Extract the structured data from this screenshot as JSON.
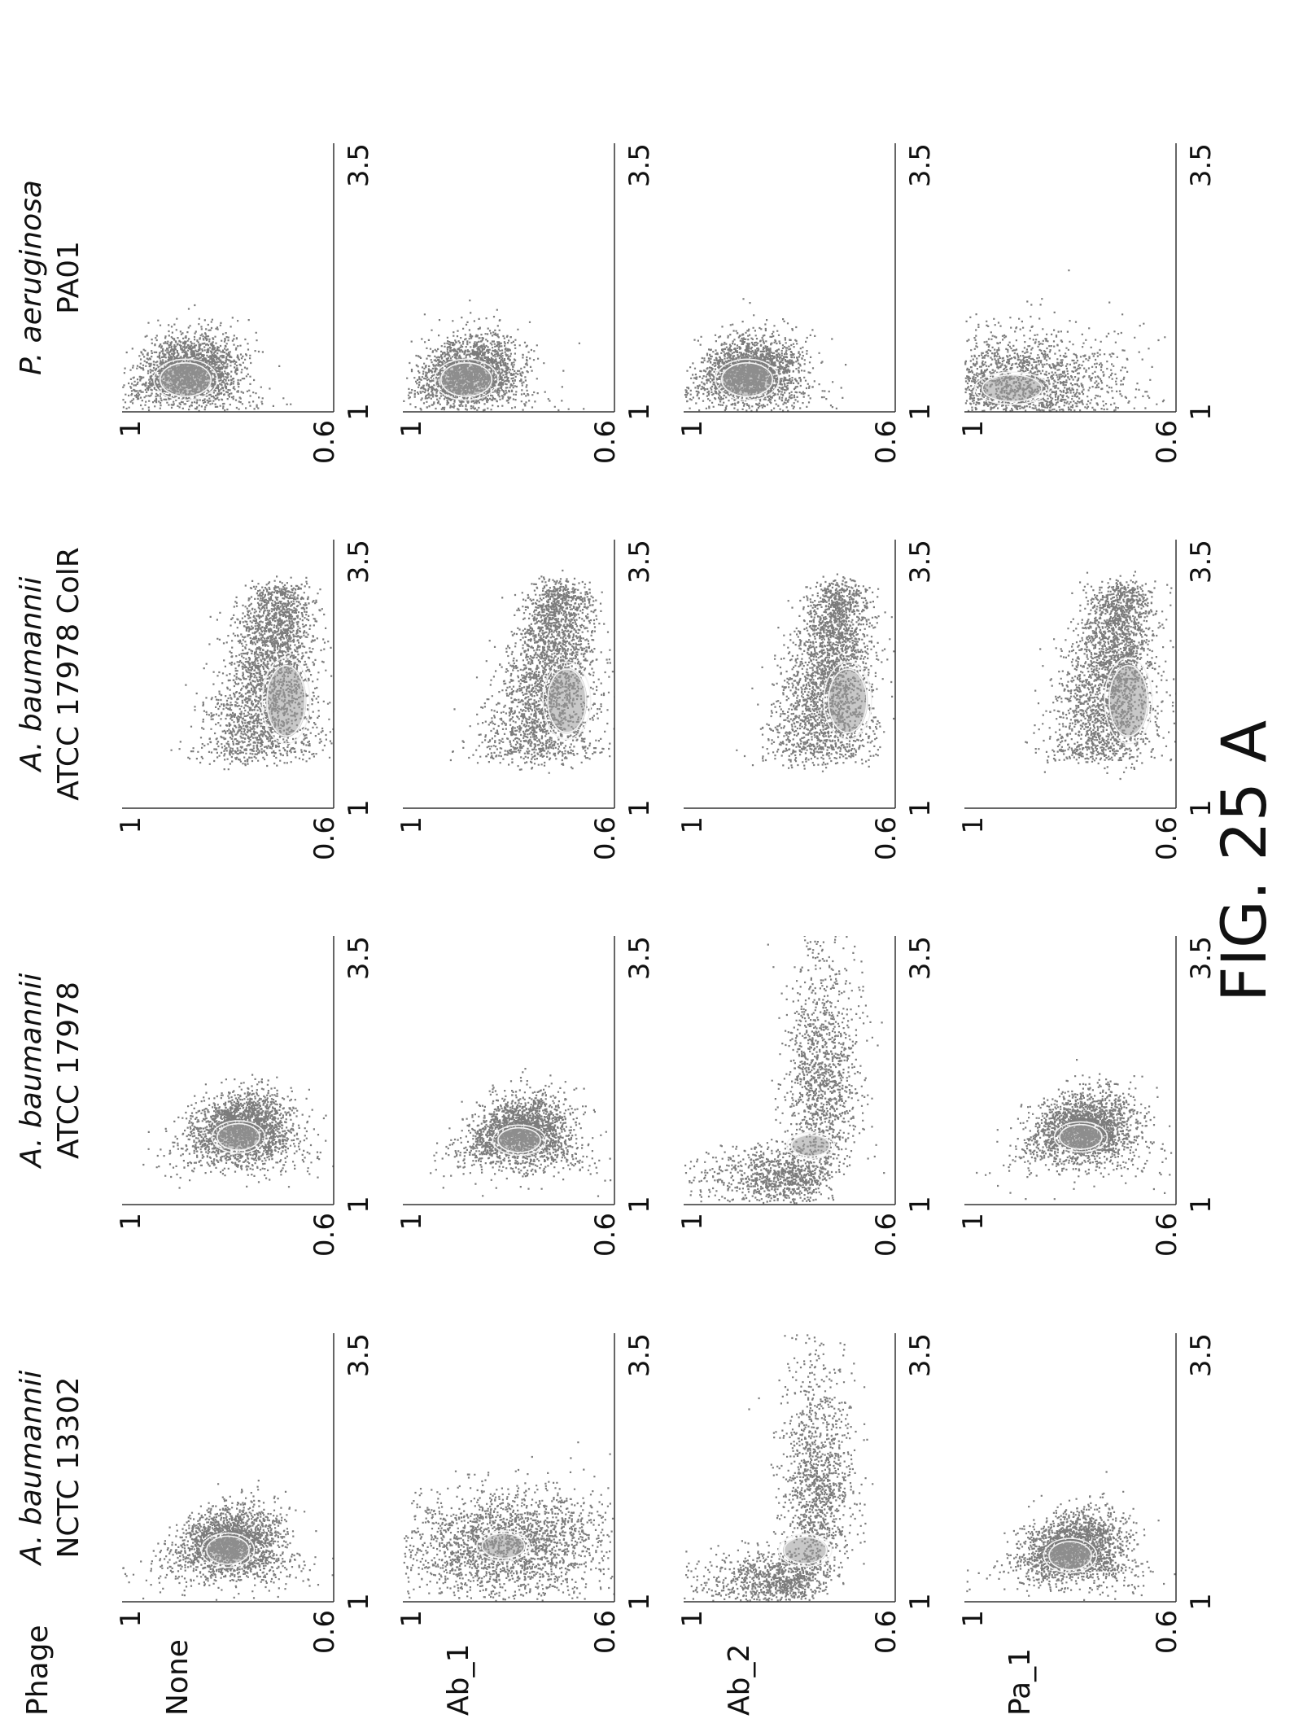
{
  "figure_label": "FIG. 25 A",
  "row_header": "Phage",
  "rows": [
    "None",
    "Ab_1",
    "Ab_2",
    "Pa_1"
  ],
  "columns": [
    {
      "species": "A. baumannii",
      "strain": "NCTC 13302"
    },
    {
      "species": "A. baumannii",
      "strain": "ATCC 17978"
    },
    {
      "species": "A. baumannii",
      "strain": "ATCC 17978 ColR"
    },
    {
      "species": "P. aeruginosa",
      "strain": "PA01"
    }
  ],
  "chart_data": {
    "type": "scatter",
    "layout": "4x4 grid of density scatter plots with contour lines",
    "xlim": [
      1,
      3.5
    ],
    "ylim": [
      0.6,
      1
    ],
    "x_tick_labels": [
      "1",
      "3.5"
    ],
    "y_tick_labels": [
      "1",
      "0.6"
    ],
    "axis_style": "left and bottom axes only",
    "panels": [
      {
        "row": "None",
        "column": "NCTC 13302",
        "shape": "triangle",
        "center": [
          1.48,
          0.8
        ],
        "contour": [
          0.16,
          0.05
        ]
      },
      {
        "row": "None",
        "column": "ATCC 17978",
        "shape": "triangle",
        "center": [
          1.63,
          0.78
        ],
        "contour": [
          0.15,
          0.05
        ]
      },
      {
        "row": "None",
        "column": "ATCC 17978 ColR",
        "shape": "elongated",
        "center": [
          2.0,
          0.69
        ],
        "contour": [
          0.4,
          0.045
        ]
      },
      {
        "row": "None",
        "column": "PA01",
        "shape": "triangle",
        "center": [
          1.3,
          0.88
        ],
        "contour": [
          0.19,
          0.06
        ]
      },
      {
        "row": "Ab_1",
        "column": "NCTC 13302",
        "shape": "diffuse",
        "center": [
          1.52,
          0.81
        ],
        "contour": [
          0.14,
          0.05
        ]
      },
      {
        "row": "Ab_1",
        "column": "ATCC 17978",
        "shape": "triangle",
        "center": [
          1.6,
          0.78
        ],
        "contour": [
          0.14,
          0.05
        ]
      },
      {
        "row": "Ab_1",
        "column": "ATCC 17978 ColR",
        "shape": "elongated",
        "center": [
          2.0,
          0.69
        ],
        "contour": [
          0.36,
          0.045
        ]
      },
      {
        "row": "Ab_1",
        "column": "PA01",
        "shape": "triangle",
        "center": [
          1.3,
          0.88
        ],
        "contour": [
          0.19,
          0.06
        ]
      },
      {
        "row": "Ab_2",
        "column": "NCTC 13302",
        "shape": "L-spread",
        "center": [
          1.48,
          0.77
        ],
        "contour": [
          0.15,
          0.05
        ]
      },
      {
        "row": "Ab_2",
        "column": "ATCC 17978",
        "shape": "L-spread",
        "center": [
          1.55,
          0.76
        ],
        "contour": [
          0.12,
          0.045
        ]
      },
      {
        "row": "Ab_2",
        "column": "ATCC 17978 ColR",
        "shape": "elongated",
        "center": [
          2.0,
          0.69
        ],
        "contour": [
          0.36,
          0.045
        ]
      },
      {
        "row": "Ab_2",
        "column": "PA01",
        "shape": "triangle",
        "center": [
          1.3,
          0.88
        ],
        "contour": [
          0.19,
          0.06
        ]
      },
      {
        "row": "Pa_1",
        "column": "NCTC 13302",
        "shape": "triangle",
        "center": [
          1.43,
          0.8
        ],
        "contour": [
          0.16,
          0.05
        ]
      },
      {
        "row": "Pa_1",
        "column": "ATCC 17978",
        "shape": "triangle",
        "center": [
          1.63,
          0.78
        ],
        "contour": [
          0.14,
          0.05
        ]
      },
      {
        "row": "Pa_1",
        "column": "ATCC 17978 ColR",
        "shape": "elongated",
        "center": [
          2.0,
          0.69
        ],
        "contour": [
          0.4,
          0.045
        ]
      },
      {
        "row": "Pa_1",
        "column": "PA01",
        "shape": "diffuse",
        "center": [
          1.22,
          0.91
        ],
        "contour": [
          0.15,
          0.07
        ]
      }
    ]
  }
}
